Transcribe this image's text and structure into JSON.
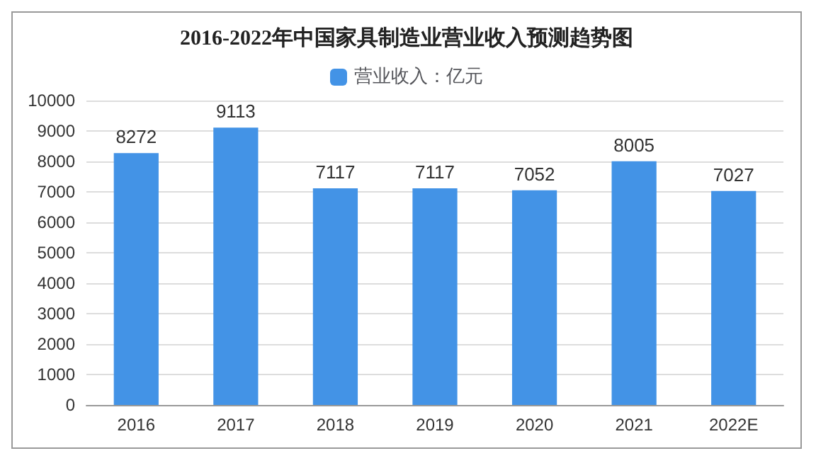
{
  "chart_data": {
    "type": "bar",
    "title": "2016-2022年中国家具制造业营业收入预测趋势图",
    "categories": [
      "2016",
      "2017",
      "2018",
      "2019",
      "2020",
      "2021",
      "2022E"
    ],
    "series": [
      {
        "name": "营业收入：亿元",
        "color": "#4393e6",
        "values": [
          8272,
          9113,
          7117,
          7117,
          7052,
          8005,
          7027
        ]
      }
    ],
    "ylim": [
      0,
      10000
    ],
    "yticks": [
      0,
      1000,
      2000,
      3000,
      4000,
      5000,
      6000,
      7000,
      8000,
      9000,
      10000
    ],
    "grid": "y",
    "legend": "top",
    "data_labels": true
  }
}
